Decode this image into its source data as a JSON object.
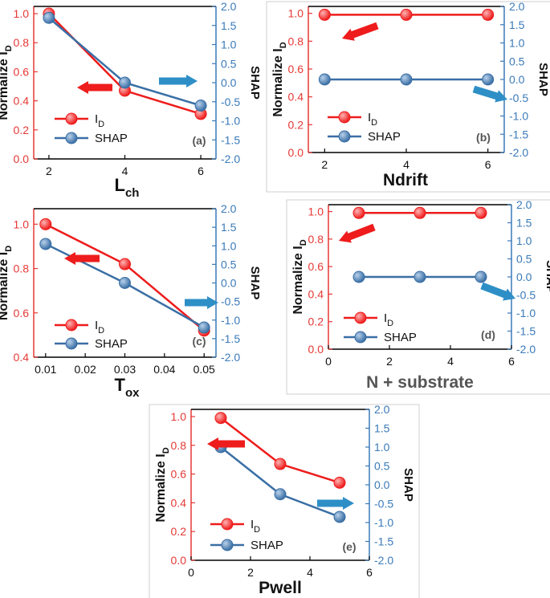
{
  "colors": {
    "id": "#ee1c1c",
    "shap": "#3a6fa5",
    "left_axis": "#e53935",
    "right_axis": "#3a7ab8",
    "arrow_red": "#ee1c1c",
    "arrow_blue": "#2e8fc7",
    "frame": "#000000"
  },
  "chart_data": [
    {
      "type": "line",
      "panel_label": "(a)",
      "xlabel_main": "L",
      "xlabel_sub": "ch",
      "ylabel_left_main": "Normalize I",
      "ylabel_left_sub": "D",
      "ylabel_right": "SHAP",
      "xlim": [
        1.6,
        6.4
      ],
      "xticks": [
        "2",
        "4",
        "6"
      ],
      "xtick_values": [
        2,
        4,
        6
      ],
      "ylim_left": [
        0,
        1.05
      ],
      "yticks_left": [
        "0.0",
        "0.2",
        "0.4",
        "0.6",
        "0.8",
        "1.0"
      ],
      "ylim_right": [
        -2,
        2
      ],
      "yticks_right": [
        "2.0",
        "1.5",
        "1.0",
        "0.5",
        "0.0",
        "-0.5",
        "-1.0",
        "-1.5",
        "-2.0"
      ],
      "series": [
        {
          "name": "I",
          "name_sub": "D",
          "axis": "left",
          "x": [
            2,
            4,
            6
          ],
          "values": [
            1.0,
            0.47,
            0.31
          ]
        },
        {
          "name": "SHAP",
          "axis": "right",
          "x": [
            2,
            4,
            6
          ],
          "values": [
            1.7,
            0.0,
            -0.6
          ]
        }
      ]
    },
    {
      "type": "line",
      "panel_label": "(b)",
      "xlabel_main": "Ndrift",
      "xlabel_sub": "",
      "ylabel_left_main": "Normalize I",
      "ylabel_left_sub": "D",
      "ylabel_right": "SHAP",
      "xlim": [
        1.6,
        6.4
      ],
      "xticks": [
        "2",
        "4",
        "6"
      ],
      "xtick_values": [
        2,
        4,
        6
      ],
      "ylim_left": [
        0,
        1.05
      ],
      "yticks_left": [
        "0.0",
        "0.2",
        "0.4",
        "0.6",
        "0.8",
        "1.0"
      ],
      "ylim_right": [
        -2,
        2
      ],
      "yticks_right": [
        "2.0",
        "1.5",
        "1.0",
        "0.5",
        "0.0",
        "-0.5",
        "-1.0",
        "-1.5",
        "-2.0"
      ],
      "series": [
        {
          "name": "I",
          "name_sub": "D",
          "axis": "left",
          "x": [
            2,
            4,
            6
          ],
          "values": [
            0.99,
            0.99,
            0.99
          ]
        },
        {
          "name": "SHAP",
          "axis": "right",
          "x": [
            2,
            4,
            6
          ],
          "values": [
            0.0,
            0.0,
            0.0
          ]
        }
      ]
    },
    {
      "type": "line",
      "panel_label": "(c)",
      "xlabel_main": "T",
      "xlabel_sub": "ox",
      "ylabel_left_main": "Normalize I",
      "ylabel_left_sub": "D",
      "ylabel_right": "SHAP",
      "xlim": [
        0.007,
        0.053
      ],
      "xticks": [
        "0.01",
        "0.02",
        "0.03",
        "0.04",
        "0.05"
      ],
      "xtick_values": [
        0.01,
        0.02,
        0.03,
        0.04,
        0.05
      ],
      "ylim_left": [
        0.4,
        1.07
      ],
      "yticks_left": [
        "0.4",
        "0.6",
        "0.8",
        "1.0"
      ],
      "ylim_right": [
        -2,
        2
      ],
      "yticks_right": [
        "2.0",
        "1.5",
        "1.0",
        "0.5",
        "0.0",
        "-0.5",
        "-1.0",
        "-1.5",
        "-2.0"
      ],
      "series": [
        {
          "name": "I",
          "name_sub": "D",
          "axis": "left",
          "x": [
            0.01,
            0.03,
            0.05
          ],
          "values": [
            1.0,
            0.82,
            0.52
          ]
        },
        {
          "name": "SHAP",
          "axis": "right",
          "x": [
            0.01,
            0.03,
            0.05
          ],
          "values": [
            1.05,
            0.0,
            -1.2
          ]
        }
      ]
    },
    {
      "type": "line",
      "panel_label": "(d)",
      "xlabel_main": "N + substrate",
      "xlabel_sub": "",
      "ylabel_left_main": "Normalize I",
      "ylabel_left_sub": "D",
      "ylabel_right": "SHAP",
      "xlim": [
        0,
        6
      ],
      "xticks": [
        "0",
        "2",
        "4",
        "6"
      ],
      "xtick_values": [
        0,
        2,
        4,
        6
      ],
      "ylim_left": [
        0,
        1.05
      ],
      "yticks_left": [
        "0.0",
        "0.2",
        "0.4",
        "0.6",
        "0.8",
        "1.0"
      ],
      "ylim_right": [
        -2,
        2
      ],
      "yticks_right": [
        "2.0",
        "1.5",
        "1.0",
        "0.5",
        "0.0",
        "-0.5",
        "-1.0",
        "-1.5",
        "-2.0"
      ],
      "series": [
        {
          "name": "I",
          "name_sub": "D",
          "axis": "left",
          "x": [
            1,
            3,
            5
          ],
          "values": [
            0.99,
            0.99,
            0.99
          ]
        },
        {
          "name": "SHAP",
          "axis": "right",
          "x": [
            1,
            3,
            5
          ],
          "values": [
            0.0,
            0.0,
            0.0
          ]
        }
      ]
    },
    {
      "type": "line",
      "panel_label": "(e)",
      "xlabel_main": "Pwell",
      "xlabel_sub": "",
      "ylabel_left_main": "Normalize I",
      "ylabel_left_sub": "D",
      "ylabel_right": "SHAP",
      "xlim": [
        0,
        6
      ],
      "xticks": [
        "0",
        "2",
        "4",
        "6"
      ],
      "xtick_values": [
        0,
        2,
        4,
        6
      ],
      "ylim_left": [
        0,
        1.05
      ],
      "yticks_left": [
        "0.0",
        "0.2",
        "0.4",
        "0.6",
        "0.8",
        "1.0"
      ],
      "ylim_right": [
        -2,
        2
      ],
      "yticks_right": [
        "2.0",
        "1.5",
        "1.0",
        "0.5",
        "0.0",
        "-0.5",
        "-1.0",
        "-1.5",
        "-2.0"
      ],
      "series": [
        {
          "name": "I",
          "name_sub": "D",
          "axis": "left",
          "x": [
            1,
            3,
            5
          ],
          "values": [
            0.99,
            0.67,
            0.54
          ]
        },
        {
          "name": "SHAP",
          "axis": "right",
          "x": [
            1,
            3,
            5
          ],
          "values": [
            1.0,
            -0.25,
            -0.85
          ]
        }
      ]
    }
  ]
}
